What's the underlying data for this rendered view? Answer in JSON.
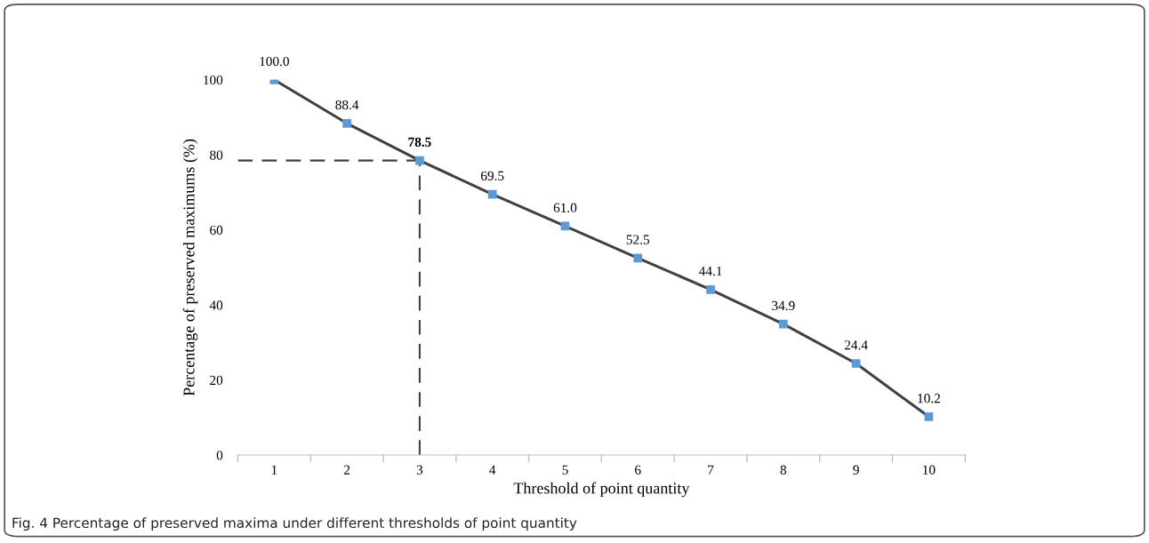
{
  "chart_data": {
    "type": "line",
    "xlabel": "Threshold of point quantity",
    "ylabel": "Percentage of preserved maximums (%)",
    "categories": [
      "1",
      "2",
      "3",
      "4",
      "5",
      "6",
      "7",
      "8",
      "9",
      "10"
    ],
    "series": [
      {
        "color": "#404040",
        "colors": [
          "#5b9bd5",
          "#5b9bd5",
          "#5b9bd5",
          "#5b9bd5",
          "#5b9bd5",
          "#5b9bd5",
          "#5b9bd5",
          "#5b9bd5",
          "#5b9bd5",
          "#5b9bd5"
        ],
        "values": [
          100.0,
          88.4,
          78.5,
          69.5,
          61.0,
          52.5,
          44.1,
          34.9,
          24.4,
          10.2
        ],
        "value_labels": [
          "100.0",
          "88.4",
          "78.5",
          "69.5",
          "61.0",
          "52.5",
          "44.1",
          "34.9",
          "24.4",
          "10.2"
        ]
      }
    ],
    "marker": "square",
    "line_style": "solid",
    "ylim": [
      0,
      100
    ],
    "yticks": [
      0,
      20,
      40,
      60,
      80,
      100
    ],
    "grid": false,
    "ref_lines": [
      {
        "axis": "y",
        "value": 78.5,
        "line_style": "dashed",
        "color": "#404040"
      },
      {
        "axis": "x",
        "value": "3",
        "line_style": "dashed",
        "color": "#404040"
      }
    ],
    "annotations": [
      "Fig. 4 Percentage of preserved maxima under different thresholds of point quantity"
    ]
  }
}
